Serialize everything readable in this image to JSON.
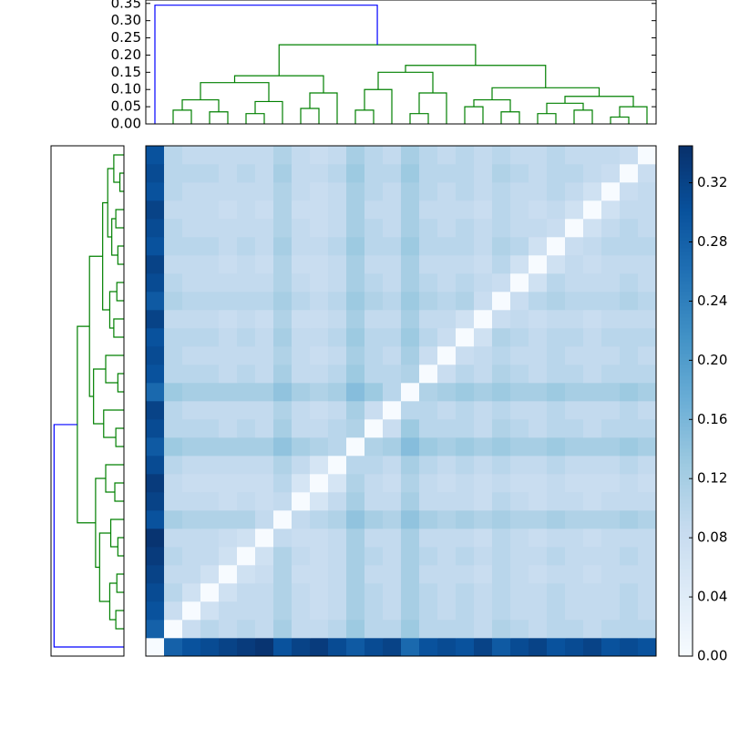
{
  "chart_data": {
    "type": "heatmap",
    "colormap": [
      "#f7fbff",
      "#deebf7",
      "#c6dbef",
      "#9ecae1",
      "#6baed6",
      "#4292c6",
      "#2171b5",
      "#08519c",
      "#08306b"
    ],
    "clim": [
      0,
      0.345
    ],
    "cticks": [
      {
        "value": 0,
        "label": "0.00"
      },
      0.04,
      0.08,
      0.12,
      0.16,
      {
        "value": 0.2,
        "label": "0.20"
      },
      0.24,
      0.28,
      0.32
    ],
    "ylim": [
      0,
      0.36
    ],
    "yticks": [
      {
        "value": 0,
        "label": "0.00"
      },
      0.05,
      {
        "value": 0.1,
        "label": "0.10"
      },
      0.15,
      {
        "value": 0.2,
        "label": "0.20"
      },
      0.25,
      {
        "value": 0.3,
        "label": "0.30"
      },
      0.35
    ],
    "linkage": [
      [
        1,
        2,
        0.04,
        "#008000"
      ],
      [
        3,
        4,
        0.035,
        "#008000"
      ],
      [
        28,
        29,
        0.07,
        "#008000"
      ],
      [
        5,
        6,
        0.03,
        "#008000"
      ],
      [
        31,
        7,
        0.065,
        "#008000"
      ],
      [
        30,
        32,
        0.12,
        "#008000"
      ],
      [
        8,
        9,
        0.045,
        "#008000"
      ],
      [
        34,
        10,
        0.09,
        "#008000"
      ],
      [
        33,
        35,
        0.14,
        "#008000"
      ],
      [
        11,
        12,
        0.04,
        "#008000"
      ],
      [
        37,
        13,
        0.1,
        "#008000"
      ],
      [
        14,
        15,
        0.03,
        "#008000"
      ],
      [
        39,
        16,
        0.09,
        "#008000"
      ],
      [
        38,
        40,
        0.15,
        "#008000"
      ],
      [
        17,
        18,
        0.05,
        "#008000"
      ],
      [
        19,
        20,
        0.035,
        "#008000"
      ],
      [
        42,
        43,
        0.07,
        "#008000"
      ],
      [
        21,
        22,
        0.03,
        "#008000"
      ],
      [
        23,
        24,
        0.04,
        "#008000"
      ],
      [
        45,
        46,
        0.06,
        "#008000"
      ],
      [
        25,
        26,
        0.02,
        "#008000"
      ],
      [
        48,
        27,
        0.05,
        "#008000"
      ],
      [
        47,
        49,
        0.08,
        "#008000"
      ],
      [
        44,
        50,
        0.105,
        "#008000"
      ],
      [
        41,
        51,
        0.17,
        "#008000"
      ],
      [
        36,
        52,
        0.23,
        "#008000"
      ],
      [
        0,
        53,
        0.345,
        "#0000ff"
      ]
    ],
    "matrix": [
      [
        0,
        0.28,
        0.3,
        0.31,
        0.32,
        0.33,
        0.34,
        0.3,
        0.32,
        0.33,
        0.31,
        0.29,
        0.31,
        0.32,
        0.27,
        0.3,
        0.31,
        0.3,
        0.32,
        0.29,
        0.31,
        0.32,
        0.3,
        0.31,
        0.32,
        0.3,
        0.31,
        0.3
      ],
      [
        0.28,
        0,
        0.08,
        0.1,
        0.09,
        0.1,
        0.09,
        0.12,
        0.09,
        0.09,
        0.1,
        0.13,
        0.1,
        0.1,
        0.13,
        0.1,
        0.1,
        0.1,
        0.09,
        0.11,
        0.1,
        0.09,
        0.1,
        0.1,
        0.09,
        0.1,
        0.1,
        0.1
      ],
      [
        0.3,
        0.08,
        0,
        0.07,
        0.09,
        0.09,
        0.09,
        0.11,
        0.09,
        0.08,
        0.09,
        0.12,
        0.1,
        0.09,
        0.12,
        0.1,
        0.09,
        0.1,
        0.09,
        0.1,
        0.09,
        0.09,
        0.1,
        0.09,
        0.09,
        0.09,
        0.1,
        0.09
      ],
      [
        0.31,
        0.1,
        0.07,
        0,
        0.07,
        0.09,
        0.09,
        0.11,
        0.09,
        0.08,
        0.09,
        0.12,
        0.1,
        0.09,
        0.12,
        0.1,
        0.09,
        0.1,
        0.09,
        0.1,
        0.09,
        0.09,
        0.1,
        0.09,
        0.09,
        0.09,
        0.1,
        0.09
      ],
      [
        0.32,
        0.09,
        0.09,
        0.07,
        0,
        0.07,
        0.08,
        0.11,
        0.08,
        0.08,
        0.09,
        0.12,
        0.09,
        0.09,
        0.12,
        0.09,
        0.09,
        0.09,
        0.08,
        0.1,
        0.09,
        0.08,
        0.09,
        0.09,
        0.08,
        0.09,
        0.09,
        0.09
      ],
      [
        0.33,
        0.1,
        0.09,
        0.09,
        0.07,
        0,
        0.07,
        0.11,
        0.09,
        0.08,
        0.09,
        0.12,
        0.1,
        0.09,
        0.12,
        0.1,
        0.09,
        0.1,
        0.09,
        0.1,
        0.09,
        0.09,
        0.1,
        0.09,
        0.09,
        0.09,
        0.1,
        0.09
      ],
      [
        0.34,
        0.09,
        0.09,
        0.09,
        0.08,
        0.07,
        0,
        0.09,
        0.08,
        0.08,
        0.09,
        0.12,
        0.09,
        0.09,
        0.12,
        0.09,
        0.09,
        0.09,
        0.08,
        0.1,
        0.09,
        0.08,
        0.09,
        0.09,
        0.08,
        0.09,
        0.09,
        0.09
      ],
      [
        0.3,
        0.12,
        0.11,
        0.11,
        0.11,
        0.11,
        0.09,
        0,
        0.09,
        0.1,
        0.11,
        0.14,
        0.12,
        0.11,
        0.14,
        0.12,
        0.11,
        0.12,
        0.11,
        0.12,
        0.11,
        0.11,
        0.12,
        0.11,
        0.11,
        0.11,
        0.12,
        0.11
      ],
      [
        0.32,
        0.09,
        0.09,
        0.09,
        0.08,
        0.09,
        0.08,
        0.09,
        0,
        0.06,
        0.09,
        0.12,
        0.09,
        0.09,
        0.12,
        0.09,
        0.09,
        0.09,
        0.08,
        0.1,
        0.09,
        0.08,
        0.09,
        0.09,
        0.08,
        0.09,
        0.09,
        0.09
      ],
      [
        0.33,
        0.09,
        0.08,
        0.08,
        0.08,
        0.08,
        0.08,
        0.1,
        0.06,
        0,
        0.06,
        0.11,
        0.09,
        0.08,
        0.11,
        0.09,
        0.08,
        0.09,
        0.08,
        0.09,
        0.08,
        0.08,
        0.09,
        0.08,
        0.08,
        0.08,
        0.09,
        0.08
      ],
      [
        0.31,
        0.1,
        0.09,
        0.09,
        0.09,
        0.09,
        0.09,
        0.11,
        0.09,
        0.06,
        0,
        0.1,
        0.1,
        0.09,
        0.12,
        0.1,
        0.09,
        0.1,
        0.09,
        0.1,
        0.09,
        0.09,
        0.1,
        0.09,
        0.09,
        0.09,
        0.1,
        0.09
      ],
      [
        0.29,
        0.13,
        0.12,
        0.12,
        0.12,
        0.12,
        0.12,
        0.14,
        0.12,
        0.11,
        0.1,
        0,
        0.11,
        0.12,
        0.15,
        0.13,
        0.12,
        0.13,
        0.12,
        0.13,
        0.12,
        0.12,
        0.13,
        0.12,
        0.12,
        0.12,
        0.13,
        0.12
      ],
      [
        0.31,
        0.1,
        0.1,
        0.1,
        0.09,
        0.1,
        0.09,
        0.12,
        0.09,
        0.09,
        0.1,
        0.11,
        0,
        0.08,
        0.13,
        0.1,
        0.1,
        0.1,
        0.09,
        0.11,
        0.1,
        0.09,
        0.1,
        0.1,
        0.09,
        0.1,
        0.1,
        0.1
      ],
      [
        0.32,
        0.1,
        0.09,
        0.09,
        0.09,
        0.09,
        0.09,
        0.11,
        0.09,
        0.08,
        0.09,
        0.12,
        0.08,
        0,
        0.1,
        0.1,
        0.09,
        0.1,
        0.09,
        0.1,
        0.09,
        0.09,
        0.1,
        0.09,
        0.09,
        0.09,
        0.1,
        0.09
      ],
      [
        0.27,
        0.13,
        0.12,
        0.12,
        0.12,
        0.12,
        0.12,
        0.14,
        0.12,
        0.11,
        0.12,
        0.15,
        0.13,
        0.1,
        0,
        0.11,
        0.12,
        0.13,
        0.12,
        0.13,
        0.12,
        0.12,
        0.13,
        0.12,
        0.12,
        0.12,
        0.13,
        0.12
      ],
      [
        0.3,
        0.1,
        0.1,
        0.1,
        0.09,
        0.1,
        0.09,
        0.12,
        0.09,
        0.09,
        0.1,
        0.13,
        0.1,
        0.1,
        0.11,
        0,
        0.08,
        0.1,
        0.09,
        0.11,
        0.1,
        0.09,
        0.1,
        0.1,
        0.09,
        0.1,
        0.1,
        0.1
      ],
      [
        0.31,
        0.1,
        0.09,
        0.09,
        0.09,
        0.09,
        0.09,
        0.11,
        0.09,
        0.08,
        0.09,
        0.12,
        0.1,
        0.09,
        0.12,
        0.08,
        0,
        0.08,
        0.09,
        0.1,
        0.09,
        0.09,
        0.1,
        0.09,
        0.09,
        0.09,
        0.1,
        0.09
      ],
      [
        0.3,
        0.1,
        0.1,
        0.1,
        0.09,
        0.1,
        0.09,
        0.12,
        0.09,
        0.09,
        0.1,
        0.13,
        0.1,
        0.1,
        0.13,
        0.1,
        0.08,
        0,
        0.07,
        0.11,
        0.1,
        0.09,
        0.1,
        0.1,
        0.09,
        0.1,
        0.1,
        0.1
      ],
      [
        0.32,
        0.09,
        0.09,
        0.09,
        0.08,
        0.09,
        0.08,
        0.11,
        0.08,
        0.08,
        0.09,
        0.12,
        0.09,
        0.09,
        0.12,
        0.09,
        0.09,
        0.07,
        0,
        0.08,
        0.09,
        0.08,
        0.09,
        0.09,
        0.08,
        0.09,
        0.09,
        0.09
      ],
      [
        0.29,
        0.11,
        0.1,
        0.1,
        0.1,
        0.1,
        0.1,
        0.12,
        0.1,
        0.09,
        0.1,
        0.13,
        0.11,
        0.1,
        0.13,
        0.11,
        0.1,
        0.11,
        0.08,
        0,
        0.08,
        0.1,
        0.11,
        0.1,
        0.1,
        0.1,
        0.11,
        0.1
      ],
      [
        0.31,
        0.1,
        0.09,
        0.09,
        0.09,
        0.09,
        0.09,
        0.11,
        0.09,
        0.08,
        0.09,
        0.12,
        0.1,
        0.09,
        0.12,
        0.1,
        0.09,
        0.1,
        0.09,
        0.08,
        0,
        0.07,
        0.1,
        0.09,
        0.09,
        0.09,
        0.1,
        0.09
      ],
      [
        0.32,
        0.09,
        0.09,
        0.09,
        0.08,
        0.09,
        0.08,
        0.11,
        0.08,
        0.08,
        0.09,
        0.12,
        0.09,
        0.09,
        0.12,
        0.09,
        0.09,
        0.09,
        0.08,
        0.1,
        0.07,
        0,
        0.07,
        0.09,
        0.08,
        0.09,
        0.09,
        0.09
      ],
      [
        0.3,
        0.1,
        0.1,
        0.1,
        0.09,
        0.1,
        0.09,
        0.12,
        0.09,
        0.09,
        0.1,
        0.13,
        0.1,
        0.1,
        0.13,
        0.1,
        0.1,
        0.1,
        0.09,
        0.11,
        0.1,
        0.07,
        0,
        0.08,
        0.09,
        0.1,
        0.1,
        0.1
      ],
      [
        0.31,
        0.1,
        0.09,
        0.09,
        0.09,
        0.09,
        0.09,
        0.11,
        0.09,
        0.08,
        0.09,
        0.12,
        0.1,
        0.09,
        0.12,
        0.1,
        0.09,
        0.1,
        0.09,
        0.1,
        0.09,
        0.09,
        0.08,
        0,
        0.07,
        0.09,
        0.1,
        0.09
      ],
      [
        0.32,
        0.09,
        0.09,
        0.09,
        0.08,
        0.09,
        0.08,
        0.11,
        0.08,
        0.08,
        0.09,
        0.12,
        0.09,
        0.09,
        0.12,
        0.09,
        0.09,
        0.09,
        0.08,
        0.1,
        0.09,
        0.08,
        0.09,
        0.07,
        0,
        0.07,
        0.09,
        0.09
      ],
      [
        0.3,
        0.1,
        0.09,
        0.09,
        0.09,
        0.09,
        0.09,
        0.11,
        0.09,
        0.08,
        0.09,
        0.12,
        0.1,
        0.09,
        0.12,
        0.1,
        0.09,
        0.1,
        0.09,
        0.1,
        0.09,
        0.09,
        0.1,
        0.09,
        0.07,
        0,
        0.08,
        0.09
      ],
      [
        0.31,
        0.1,
        0.1,
        0.1,
        0.09,
        0.1,
        0.09,
        0.12,
        0.09,
        0.09,
        0.1,
        0.13,
        0.1,
        0.1,
        0.13,
        0.1,
        0.1,
        0.1,
        0.09,
        0.11,
        0.1,
        0.09,
        0.1,
        0.1,
        0.09,
        0.08,
        0,
        0.08
      ],
      [
        0.3,
        0.1,
        0.09,
        0.09,
        0.09,
        0.09,
        0.09,
        0.11,
        0.09,
        0.08,
        0.09,
        0.12,
        0.1,
        0.09,
        0.12,
        0.1,
        0.09,
        0.1,
        0.09,
        0.1,
        0.09,
        0.09,
        0.1,
        0.09,
        0.09,
        0.09,
        0.08,
        0
      ]
    ]
  }
}
